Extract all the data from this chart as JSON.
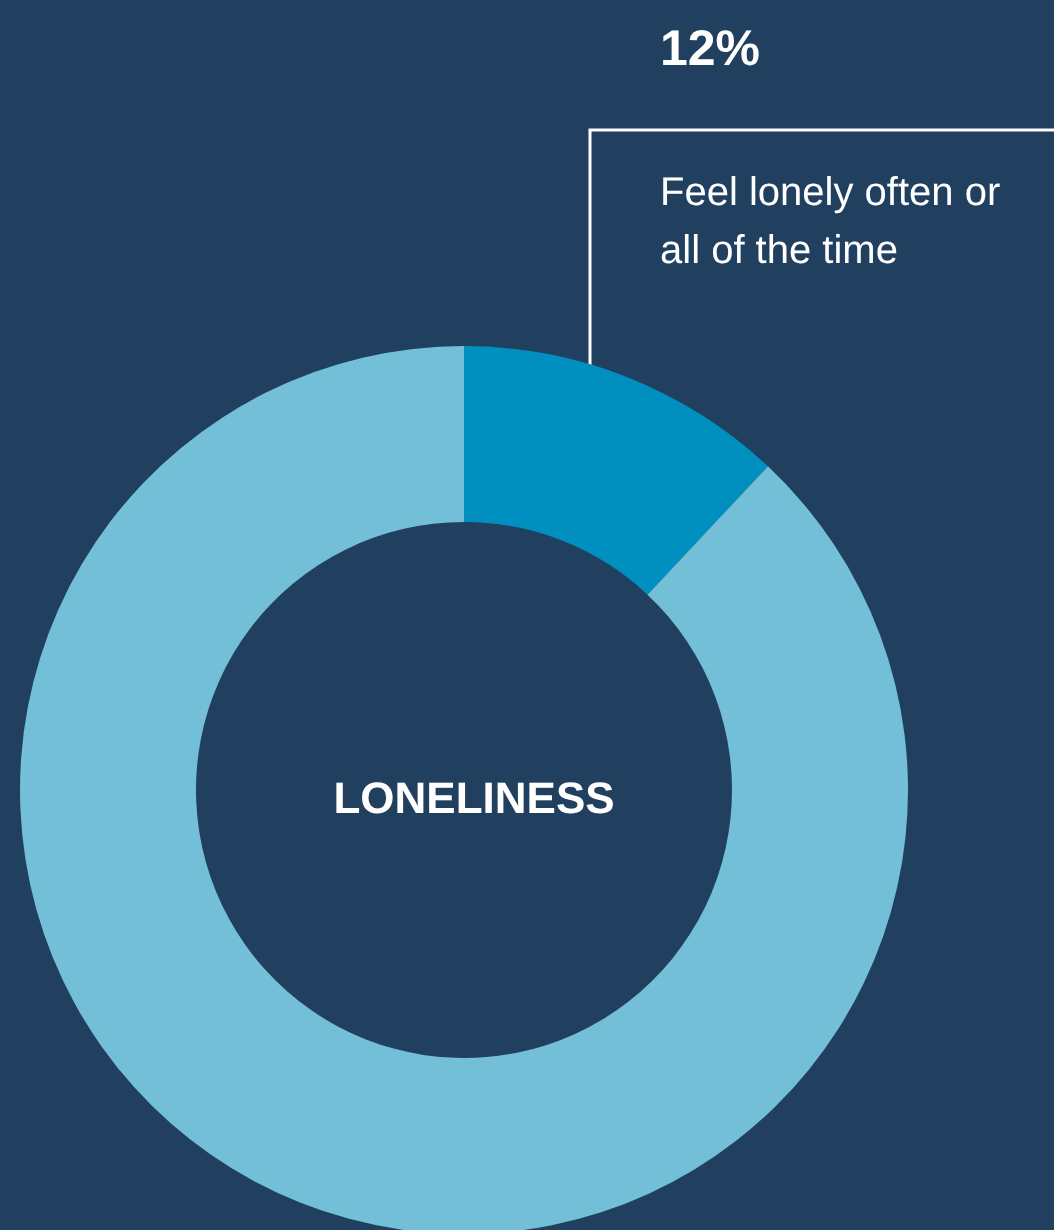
{
  "chart_data": {
    "type": "donut",
    "title": "LONELINESS",
    "categories": [
      "Feel lonely often or all of the time",
      null
    ],
    "values": [
      12,
      88
    ],
    "colors": [
      "#0090bf",
      "#74bfd8"
    ],
    "value_labels": [
      "12%",
      null
    ],
    "legend": false
  }
}
